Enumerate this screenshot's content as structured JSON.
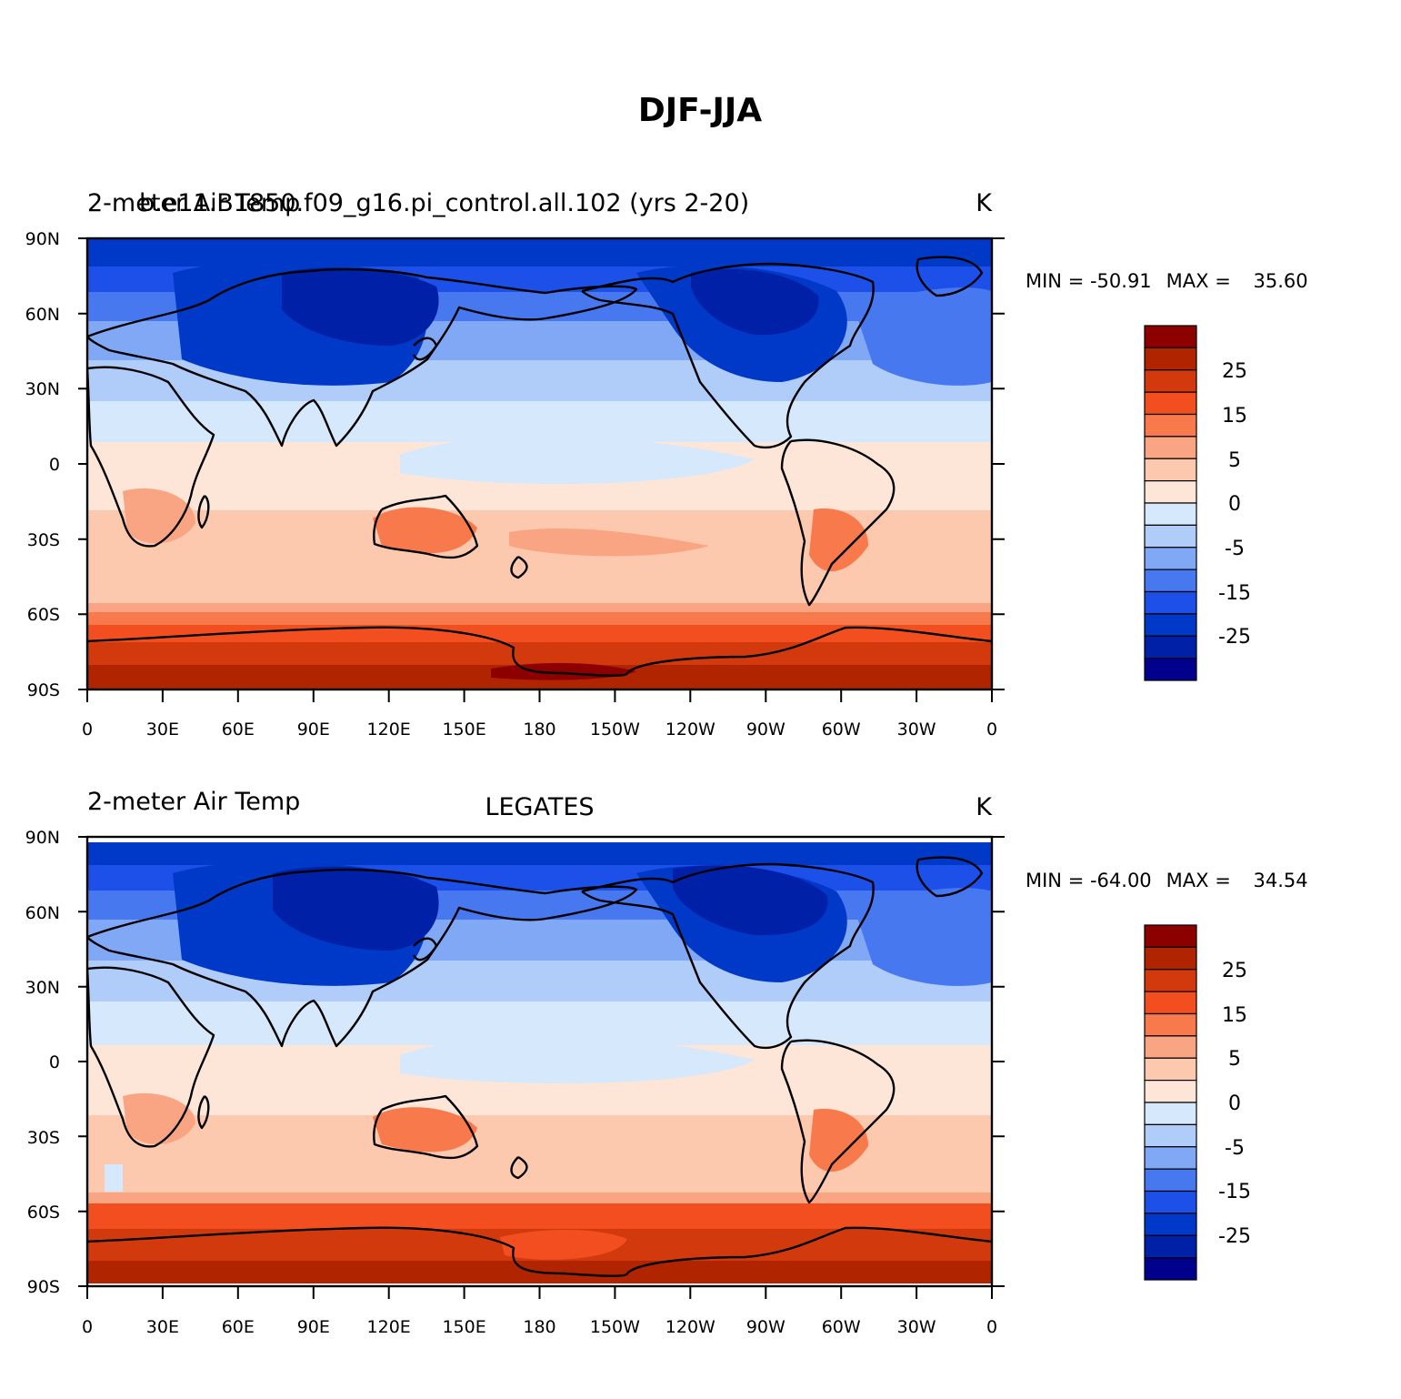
{
  "figure": {
    "title": "DJF-JJA"
  },
  "colors": {
    "levels": [
      "#00008c",
      "#0020a8",
      "#0038c8",
      "#1c50e8",
      "#4878f0",
      "#80a8f4",
      "#b0ccf8",
      "#d6e8fc",
      "#fde6d8",
      "#fcc8ae",
      "#f9a482",
      "#f7794c",
      "#f24e20",
      "#d23a0e",
      "#b02400",
      "#8c0000"
    ],
    "coast": "#000000"
  },
  "axis": {
    "lat_ticks": [
      "90N",
      "60N",
      "30N",
      "0",
      "30S",
      "60S",
      "90S"
    ],
    "lon_ticks": [
      "0",
      "30E",
      "60E",
      "90E",
      "120E",
      "150E",
      "180",
      "150W",
      "120W",
      "90W",
      "60W",
      "30W",
      "0"
    ]
  },
  "panels": [
    {
      "left_title": "2-meter Air Temp",
      "overlap_title": "b.e11.B1850.f09_g16.pi_control.all.102 (yrs 2-20)",
      "center_title": "",
      "units": "K",
      "min_label": "MIN = ",
      "min_value": "-50.91",
      "max_label": "MAX = ",
      "max_value": "35.60"
    },
    {
      "left_title": "2-meter Air Temp",
      "overlap_title": "",
      "center_title": "LEGATES",
      "units": "K",
      "min_label": "MIN = ",
      "min_value": "-64.00",
      "max_label": "MAX = ",
      "max_value": "34.54"
    }
  ],
  "colorbar": {
    "labels": [
      "25",
      "15",
      "5",
      "0",
      "-5",
      "-15",
      "-25"
    ]
  }
}
